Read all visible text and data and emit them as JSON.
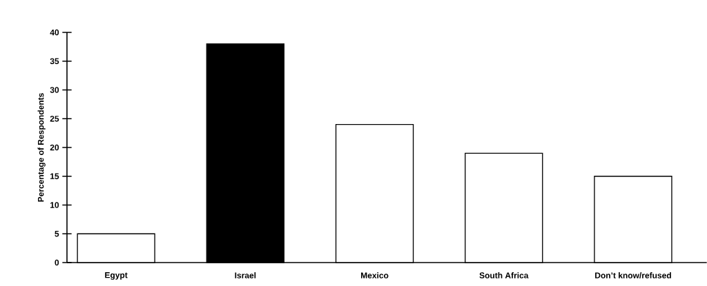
{
  "chart_data": {
    "type": "bar",
    "ylabel": "Percentage of Respondents",
    "categories": [
      "Egypt",
      "Israel",
      "Mexico",
      "South Africa",
      "Don’t know/refused"
    ],
    "values": [
      5,
      38,
      24,
      19,
      15
    ],
    "colors": [
      "#ffffff",
      "#000000",
      "#ffffff",
      "#ffffff",
      "#ffffff"
    ],
    "ylim": [
      0,
      40
    ],
    "yticks": [
      0,
      5,
      10,
      15,
      20,
      25,
      30,
      35,
      40
    ],
    "grid": false
  }
}
